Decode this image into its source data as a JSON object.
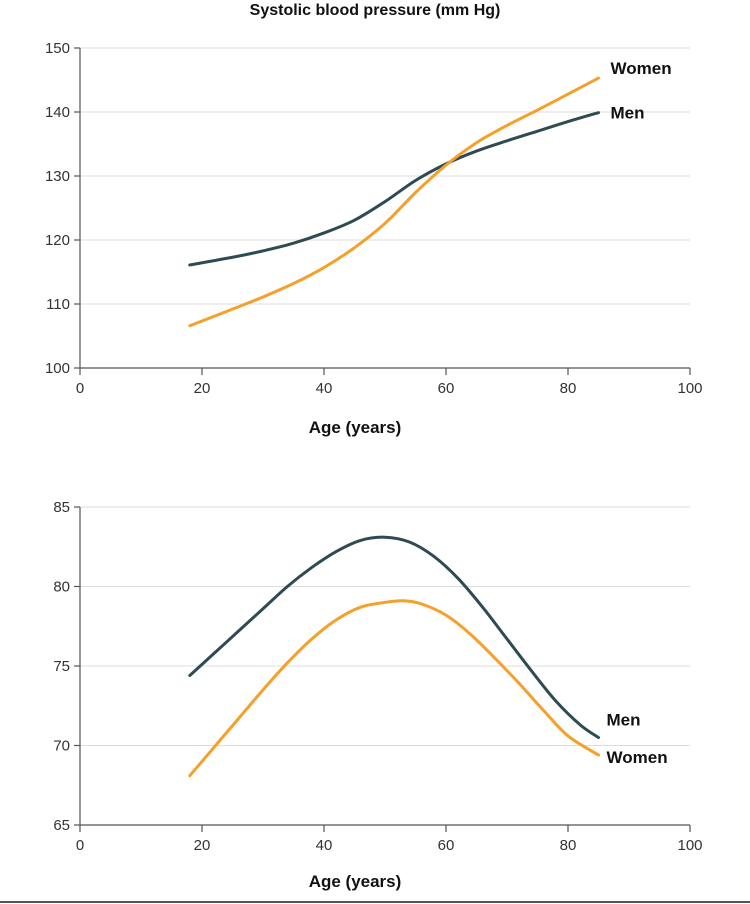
{
  "chart_data": [
    {
      "type": "line",
      "title": "Systolic blood pressure (mm Hg)",
      "xlabel": "Age (years)",
      "ylabel": "",
      "xlim": [
        0,
        100
      ],
      "ylim": [
        100,
        150
      ],
      "xticks": [
        0,
        20,
        40,
        60,
        80,
        100
      ],
      "yticks": [
        100,
        110,
        120,
        130,
        140,
        150
      ],
      "grid": "horizontal",
      "series": [
        {
          "name": "Men",
          "color": "#2e4a52",
          "x": [
            18,
            25,
            30,
            35,
            40,
            45,
            50,
            55,
            60,
            65,
            70,
            75,
            80,
            85
          ],
          "y": [
            116.1,
            117.3,
            118.3,
            119.5,
            121.1,
            123.1,
            126.0,
            129.3,
            131.9,
            133.9,
            135.5,
            137.0,
            138.5,
            139.9
          ]
        },
        {
          "name": "Women",
          "color": "#f5a02a",
          "x": [
            18,
            25,
            30,
            35,
            40,
            45,
            50,
            55,
            60,
            65,
            70,
            75,
            80,
            85
          ],
          "y": [
            106.6,
            109.2,
            111.1,
            113.2,
            115.7,
            118.8,
            122.6,
            127.4,
            131.7,
            135.2,
            137.9,
            140.3,
            142.8,
            145.3
          ]
        }
      ]
    },
    {
      "type": "line",
      "title": "",
      "xlabel": "Age (years)",
      "ylabel": "",
      "xlim": [
        0,
        100
      ],
      "ylim": [
        65,
        85
      ],
      "xticks": [
        0,
        20,
        40,
        60,
        80,
        100
      ],
      "yticks": [
        65,
        70,
        75,
        80,
        85
      ],
      "grid": "horizontal",
      "series": [
        {
          "name": "Men",
          "color": "#2e4a52",
          "x": [
            18,
            22,
            26,
            30,
            34,
            38,
            42,
            46,
            50,
            54,
            58,
            62,
            66,
            70,
            74,
            78,
            82,
            85
          ],
          "y": [
            74.4,
            75.8,
            77.2,
            78.6,
            80.0,
            81.2,
            82.2,
            82.9,
            83.1,
            82.8,
            81.9,
            80.5,
            78.7,
            76.7,
            74.7,
            72.8,
            71.3,
            70.5
          ]
        },
        {
          "name": "Women",
          "color": "#f5a02a",
          "x": [
            18,
            22,
            26,
            30,
            34,
            38,
            42,
            46,
            50,
            53,
            56,
            60,
            64,
            68,
            72,
            76,
            80,
            85
          ],
          "y": [
            68.1,
            69.9,
            71.7,
            73.5,
            75.2,
            76.7,
            77.9,
            78.7,
            79.0,
            79.1,
            78.9,
            78.2,
            77.0,
            75.5,
            73.9,
            72.2,
            70.6,
            69.4
          ]
        }
      ]
    }
  ]
}
